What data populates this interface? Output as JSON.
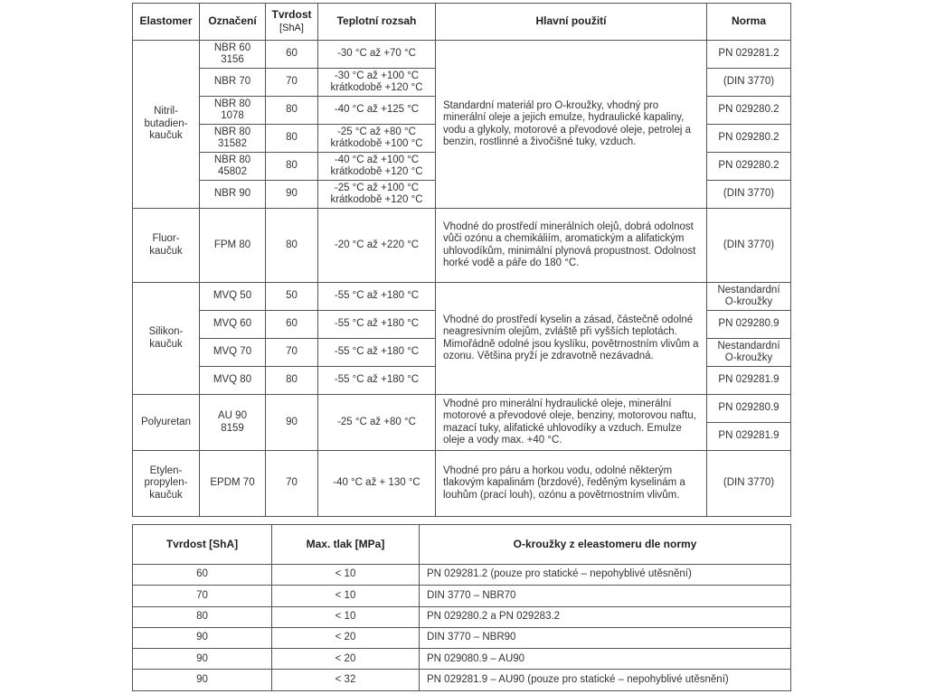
{
  "table1": {
    "headers": {
      "elastomer": "Elastomer",
      "oznaceni": "Označení",
      "tvrdost": "Tvrdost",
      "tvrdost_unit": "[ShA]",
      "teplota": "Teplotní rozsah",
      "pouziti": "Hlavní použití",
      "norma": "Norma"
    },
    "groups": [
      {
        "elastomer": "Nitril-\nbutadien-\nkaučuk",
        "usage": "Standardní materiál pro O-kroužky, vhodný pro minerální oleje a jejich emulze, hydraulické kapaliny, vodu a glykoly, motorové a převodové oleje, petrolej a benzin, rostlinné a živočišné tuky, vzduch.",
        "rows": [
          {
            "oznaceni": "NBR 60\n3156",
            "tvrdost": "60",
            "teplota": "-30 °C až +70 °C",
            "normy": [
              "PN 029281.2"
            ]
          },
          {
            "oznaceni": "NBR 70",
            "tvrdost": "70",
            "teplota": "-30 °C až +100 °C\nkrátkodobě +120 °C",
            "normy": [
              "(DIN 3770)"
            ]
          },
          {
            "oznaceni": "NBR 80\n1078",
            "tvrdost": "80",
            "teplota": "-40 °C až +125 °C",
            "normy": [
              "PN 029280.2"
            ]
          },
          {
            "oznaceni": "NBR 80\n31582",
            "tvrdost": "80",
            "teplota": "-25 °C až +80 °C\nkrátkodobě +100 °C",
            "normy": [
              "PN 029280.2"
            ]
          },
          {
            "oznaceni": "NBR 80\n45802",
            "tvrdost": "80",
            "teplota": "-40 °C až +100 °C\nkrátkodobě +120 °C",
            "normy": [
              "PN 029280.2"
            ]
          },
          {
            "oznaceni": "NBR 90",
            "tvrdost": "90",
            "teplota": "-25 °C až +100 °C\nkrátkodobě +120 °C",
            "normy": [
              "(DIN 3770)"
            ]
          }
        ]
      },
      {
        "elastomer": "Fluor-\nkaučuk",
        "usage": "Vhodné do prostředí minerálních olejů, dobrá odolnost vůči ozónu a chemikáliím, aromatickým a alifatickým uhlovodíkům, minimální plynová propustnost. Odolnost horké vodě a páře do 180 °C.",
        "rows": [
          {
            "oznaceni": "FPM 80",
            "tvrdost": "80",
            "teplota": "-20 °C až +220 °C",
            "normy": [
              "(DIN 3770)"
            ],
            "tall": 82
          }
        ]
      },
      {
        "elastomer": "Silikon-\nkaučuk",
        "usage": "Vhodné do prostředí kyselin a zásad, částečně odolné neagresivním olejům, zvláště při vyšších teplotách. Mimořádně odolné jsou kyslíku, povětrnostním vlivům a ozonu. Většina pryží je zdravotně nezávadná.",
        "rows": [
          {
            "oznaceni": "MVQ 50",
            "tvrdost": "50",
            "teplota": "-55 °C až +180 °C",
            "normy": [
              "Nestandardní\nO-kroužky"
            ]
          },
          {
            "oznaceni": "MVQ 60",
            "tvrdost": "60",
            "teplota": "-55 °C až +180 °C",
            "normy": [
              "PN 029280.9"
            ]
          },
          {
            "oznaceni": "MVQ 70",
            "tvrdost": "70",
            "teplota": "-55 °C až +180 °C",
            "normy": [
              "Nestandardní\nO-kroužky"
            ]
          },
          {
            "oznaceni": "MVQ 80",
            "tvrdost": "80",
            "teplota": "-55 °C až +180 °C",
            "normy": [
              "PN 029281.9"
            ]
          }
        ]
      },
      {
        "elastomer": "Polyuretan",
        "usage": "Vhodné pro minerální hydraulické oleje, minerální motorové a převodové oleje, benziny, motorovou naftu, mazací tuky, alifatické uhlovodíky a vzduch. Emulze oleje a vody max. +40 °C.",
        "rows": [
          {
            "oznaceni": "AU 90\n8159",
            "tvrdost": "90",
            "teplota": "-25 °C až +80 °C",
            "normy": [
              "PN 029280.9",
              "PN 029281.9"
            ]
          }
        ]
      },
      {
        "elastomer": "Etylen-\npropylen-\nkaučuk",
        "usage": "Vhodné pro páru a horkou vodu, odolné některým tlakovým kapalinám (brzdové), ředěným kyselinám a louhům (prací louh), ozónu a povětrnostním vlivům.",
        "rows": [
          {
            "oznaceni": "EPDM 70",
            "tvrdost": "70",
            "teplota": "-40 °C až + 130 °C",
            "normy": [
              "(DIN 3770)"
            ],
            "tall": 73
          }
        ]
      }
    ]
  },
  "table2": {
    "headers": [
      "Tvrdost [ShA]",
      "Max. tlak [MPa]",
      "O-kroužky z eleastomeru dle normy"
    ],
    "rows": [
      [
        "60",
        "< 10",
        "PN 029281.2 (pouze pro statické – nepohyblivé utěsnění)"
      ],
      [
        "70",
        "< 10",
        "DIN 3770 – NBR70"
      ],
      [
        "80",
        "< 10",
        "PN 029280.2 a PN 029283.2"
      ],
      [
        "90",
        "< 20",
        "DIN 3770 – NBR90"
      ],
      [
        "90",
        "< 20",
        "PN 029080.9 – AU90"
      ],
      [
        "90",
        "< 32",
        "PN 029281.9 – AU90 (pouze pro statické – nepohyblivé utěsnění)"
      ]
    ]
  }
}
